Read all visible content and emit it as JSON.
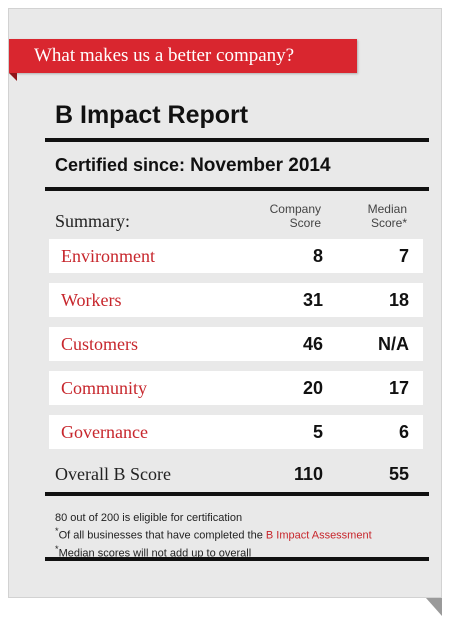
{
  "banner": {
    "text": "What makes us a better company?"
  },
  "report": {
    "title": "B Impact Report",
    "certified_label": "Certified since:",
    "certified_date": "November 2014"
  },
  "summary": {
    "label": "Summary:",
    "company_header_line1": "Company",
    "company_header_line2": "Score",
    "median_header_line1": "Median",
    "median_header_line2": "Score*"
  },
  "rows": [
    {
      "label": "Environment",
      "company": "8",
      "median": "7"
    },
    {
      "label": "Workers",
      "company": "31",
      "median": "18"
    },
    {
      "label": "Customers",
      "company": "46",
      "median": "N/A"
    },
    {
      "label": "Community",
      "company": "20",
      "median": "17"
    },
    {
      "label": "Governance",
      "company": "5",
      "median": "6"
    }
  ],
  "overall": {
    "label": "Overall B Score",
    "company": "110",
    "median": "55"
  },
  "notes": {
    "line1": "80 out of 200 is eligible for certification",
    "line2_prefix": "*",
    "line2_text": "Of all businesses that have completed the ",
    "line2_link": "B Impact Assessment",
    "line3_prefix": "*",
    "line3_text": "Median scores will not add up to overall"
  },
  "colors": {
    "accent": "#d9262f",
    "label_red": "#c7262c",
    "card_bg": "#e9e9e9"
  }
}
